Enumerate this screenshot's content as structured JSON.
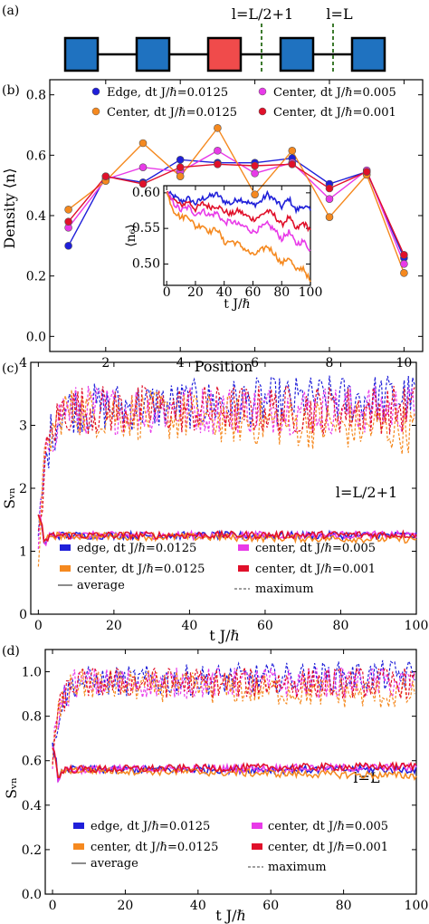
{
  "colors": {
    "edge": "#1f1fd9",
    "center_0125": "#f5891f",
    "center_005": "#e83ae8",
    "center_001": "#e0102a",
    "site_blue": "#1f72c0",
    "site_red": "#f04b4b",
    "dashed_green": "#3d7a2e"
  },
  "panel_a": {
    "label": "(a)",
    "cut1_label": "l=L/2+1",
    "cut2_label": "l=L",
    "sites": [
      "blue",
      "blue",
      "red",
      "blue",
      "blue"
    ]
  },
  "chart_data": [
    {
      "panel_label": "(b)",
      "type": "line",
      "xlabel": "Position",
      "ylabel": "Density ⟨n⟩",
      "xlim": [
        0.5,
        10.5
      ],
      "ylim": [
        -0.05,
        0.85
      ],
      "xticks": [
        "2",
        "4",
        "6",
        "8",
        "10"
      ],
      "yticks": [
        "0.0",
        "0.2",
        "0.4",
        "0.6",
        "0.8"
      ],
      "x": [
        1,
        2,
        3,
        4,
        5,
        6,
        7,
        8,
        9,
        10
      ],
      "legend": [
        "Edge, dt J/ℏ=0.0125",
        "Center, dt J/ℏ=0.005",
        "Center, dt J/ℏ=0.0125",
        "Center, dt J/ℏ=0.001"
      ],
      "series": [
        {
          "name": "Edge, dt J/ℏ=0.0125",
          "color": "#1f1fd9",
          "values": [
            0.3,
            0.53,
            0.51,
            0.585,
            0.575,
            0.575,
            0.59,
            0.505,
            0.545,
            0.26
          ]
        },
        {
          "name": "Center, dt J/ℏ=0.005",
          "color": "#e83ae8",
          "values": [
            0.36,
            0.52,
            0.56,
            0.545,
            0.615,
            0.54,
            0.575,
            0.455,
            0.55,
            0.24
          ]
        },
        {
          "name": "Center, dt J/ℏ=0.0125",
          "color": "#f5891f",
          "values": [
            0.42,
            0.515,
            0.64,
            0.53,
            0.69,
            0.47,
            0.615,
            0.395,
            0.535,
            0.21
          ]
        },
        {
          "name": "Center, dt J/ℏ=0.001",
          "color": "#e0102a",
          "values": [
            0.38,
            0.53,
            0.505,
            0.56,
            0.57,
            0.565,
            0.57,
            0.49,
            0.545,
            0.27
          ]
        }
      ],
      "inset": {
        "type": "line",
        "xlabel": "t J/ℏ",
        "ylabel": "⟨n₆⟩",
        "xlim": [
          -2,
          100
        ],
        "ylim": [
          0.47,
          0.61
        ],
        "xticks": [
          "0",
          "20",
          "40",
          "60",
          "80",
          "100"
        ],
        "yticks": [
          "0.50",
          "0.55",
          "0.60"
        ],
        "t": [
          0,
          5,
          10,
          15,
          20,
          25,
          30,
          35,
          40,
          45,
          50,
          55,
          60,
          65,
          70,
          75,
          80,
          85,
          90,
          95,
          100
        ],
        "series": [
          {
            "color": "#1f1fd9",
            "values": [
              0.6,
              0.595,
              0.588,
              0.592,
              0.585,
              0.592,
              0.595,
              0.598,
              0.588,
              0.585,
              0.592,
              0.588,
              0.583,
              0.587,
              0.598,
              0.59,
              0.58,
              0.592,
              0.575,
              0.582,
              0.575
            ]
          },
          {
            "color": "#e0102a",
            "values": [
              0.6,
              0.59,
              0.582,
              0.588,
              0.577,
              0.585,
              0.58,
              0.582,
              0.574,
              0.57,
              0.575,
              0.568,
              0.563,
              0.567,
              0.575,
              0.568,
              0.555,
              0.566,
              0.548,
              0.558,
              0.548
            ]
          },
          {
            "color": "#e83ae8",
            "values": [
              0.6,
              0.585,
              0.575,
              0.58,
              0.57,
              0.575,
              0.568,
              0.572,
              0.558,
              0.56,
              0.555,
              0.552,
              0.545,
              0.55,
              0.556,
              0.548,
              0.535,
              0.545,
              0.528,
              0.532,
              0.52
            ]
          },
          {
            "color": "#f5891f",
            "values": [
              0.6,
              0.575,
              0.565,
              0.568,
              0.552,
              0.555,
              0.545,
              0.55,
              0.53,
              0.532,
              0.528,
              0.52,
              0.512,
              0.518,
              0.525,
              0.515,
              0.5,
              0.51,
              0.49,
              0.495,
              0.475
            ]
          }
        ]
      }
    },
    {
      "panel_label": "(c)",
      "type": "line",
      "xlabel": "t J/ℏ",
      "ylabel": "Sᵥₙ",
      "annotation": "l=L/2+1",
      "xlim": [
        -2,
        100
      ],
      "ylim": [
        0,
        4
      ],
      "xticks": [
        "0",
        "20",
        "40",
        "60",
        "80",
        "100"
      ],
      "yticks": [
        "0",
        "1",
        "2",
        "3",
        "4"
      ],
      "average_level": 1.25,
      "maximum_level": 3.25,
      "legend": [
        "edge, dt J/ℏ=0.0125",
        "center, dt J/ℏ=0.005",
        "center, dt J/ℏ=0.0125",
        "center, dt J/ℏ=0.001"
      ],
      "style_legend": [
        "average",
        "maximum"
      ],
      "series": [
        {
          "name": "edge, dt J/ℏ=0.0125",
          "color": "#1f1fd9"
        },
        {
          "name": "center, dt J/ℏ=0.005",
          "color": "#e83ae8"
        },
        {
          "name": "center, dt J/ℏ=0.0125",
          "color": "#f5891f"
        },
        {
          "name": "center, dt J/ℏ=0.001",
          "color": "#e0102a"
        }
      ]
    },
    {
      "panel_label": "(d)",
      "type": "line",
      "xlabel": "t J/ℏ",
      "ylabel": "Sᵥₙ",
      "annotation": "l=L",
      "xlim": [
        -2,
        100
      ],
      "ylim": [
        0.0,
        1.1
      ],
      "xticks": [
        "0",
        "20",
        "40",
        "60",
        "80",
        "100"
      ],
      "yticks": [
        "0.0",
        "0.2",
        "0.4",
        "0.6",
        "0.8",
        "1.0"
      ],
      "average_level": 0.56,
      "maximum_level": 0.95,
      "legend": [
        "edge, dt J/ℏ=0.0125",
        "center, dt J/ℏ=0.005",
        "center, dt J/ℏ=0.0125",
        "center, dt J/ℏ=0.001"
      ],
      "style_legend": [
        "average",
        "maximum"
      ],
      "series": [
        {
          "name": "edge, dt J/ℏ=0.0125",
          "color": "#1f1fd9"
        },
        {
          "name": "center, dt J/ℏ=0.005",
          "color": "#e83ae8"
        },
        {
          "name": "center, dt J/ℏ=0.0125",
          "color": "#f5891f"
        },
        {
          "name": "center, dt J/ℏ=0.001",
          "color": "#e0102a"
        }
      ]
    }
  ]
}
